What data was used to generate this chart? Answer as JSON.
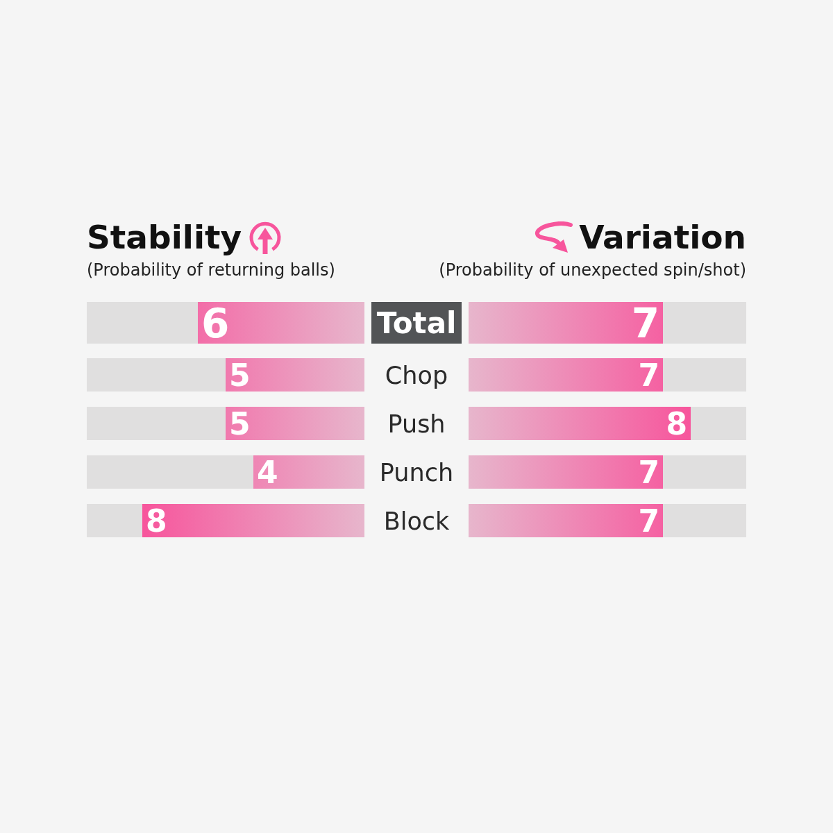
{
  "chart_data": [
    {
      "type": "bar",
      "orientation": "horizontal",
      "title": "Stability",
      "subtitle": "(Probability of returning balls)",
      "categories": [
        "Total",
        "Chop",
        "Push",
        "Punch",
        "Block"
      ],
      "values": [
        6,
        5,
        5,
        4,
        8
      ],
      "color": "#f7559c",
      "xlim": [
        10,
        0
      ],
      "data_labels": true,
      "tick_labels": "y"
    },
    {
      "type": "bar",
      "orientation": "horizontal",
      "title": "Variation",
      "subtitle": "(Probability of unexpected spin/shot)",
      "categories": [
        null,
        null,
        null,
        null,
        null
      ],
      "values": [
        7,
        7,
        8,
        7,
        7
      ],
      "color": "#f7559c",
      "xlim": [
        0,
        10
      ],
      "data_labels": true,
      "tick_labels": false
    }
  ]
}
